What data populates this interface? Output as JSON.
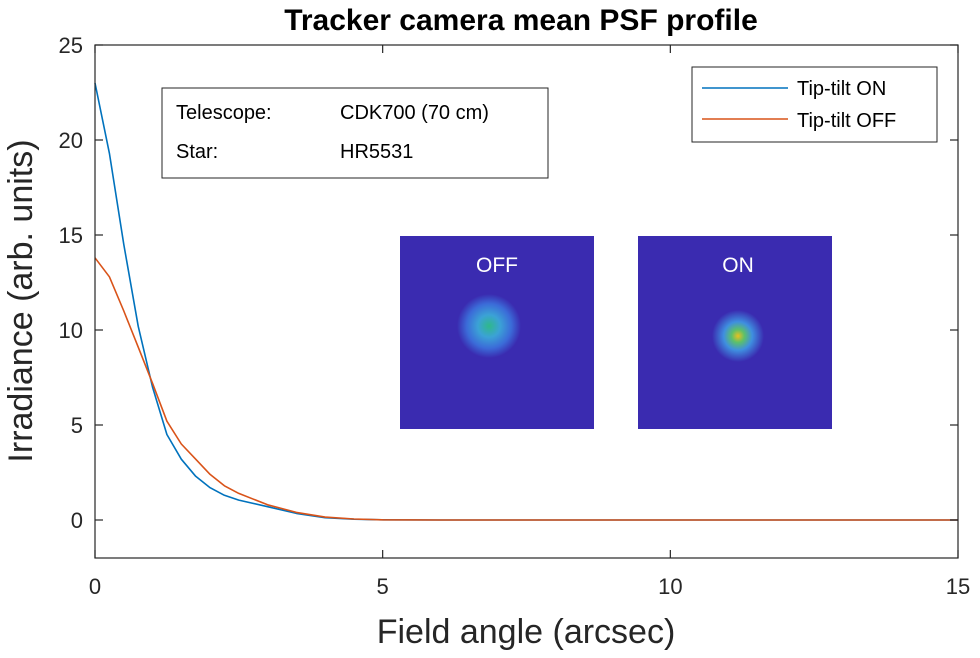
{
  "chart_data": {
    "type": "line",
    "title": "Tracker camera mean PSF profile",
    "xlabel": "Field angle (arcsec)",
    "ylabel": "Irradiance (arb. units)",
    "xlim": [
      0,
      15
    ],
    "ylim": [
      -2,
      25
    ],
    "xticks": [
      0,
      5,
      10,
      15
    ],
    "yticks": [
      0,
      5,
      10,
      15,
      20,
      25
    ],
    "grid": false,
    "legend_position": "top-right",
    "series": [
      {
        "name": "Tip-tilt ON",
        "color": "#0072BD",
        "x": [
          0,
          0.25,
          0.5,
          0.75,
          1.0,
          1.25,
          1.5,
          1.75,
          2.0,
          2.25,
          2.5,
          3.0,
          3.5,
          4.0,
          4.5,
          5.0,
          6,
          8,
          10,
          12,
          15
        ],
        "y": [
          23.0,
          19.3,
          14.5,
          10.2,
          7.0,
          4.5,
          3.2,
          2.3,
          1.7,
          1.3,
          1.05,
          0.7,
          0.35,
          0.12,
          0.04,
          0.01,
          0,
          0,
          0,
          0,
          0
        ]
      },
      {
        "name": "Tip-tilt OFF",
        "color": "#D95319",
        "x": [
          0,
          0.25,
          0.5,
          0.75,
          1.0,
          1.25,
          1.5,
          1.75,
          2.0,
          2.25,
          2.5,
          3.0,
          3.5,
          4.0,
          4.5,
          5.0,
          6,
          8,
          10,
          12,
          15
        ],
        "y": [
          13.8,
          12.8,
          11.0,
          9.1,
          7.2,
          5.2,
          4.0,
          3.2,
          2.4,
          1.8,
          1.4,
          0.8,
          0.4,
          0.15,
          0.05,
          0.01,
          0,
          0,
          0,
          0,
          0
        ]
      }
    ],
    "annotation_box": {
      "rows": [
        {
          "label": "Telescope:",
          "value": "CDK700 (70 cm)"
        },
        {
          "label": "Star:",
          "value": "HR5531"
        }
      ]
    },
    "insets": [
      {
        "label": "OFF",
        "background": "#3A2BB0",
        "spot_peak": "#2FB88A",
        "spot_halo": "#3F8FE0"
      },
      {
        "label": "ON",
        "background": "#3A2BB0",
        "spot_peak": "#E8C020",
        "spot_halo": "#3F8FE0"
      }
    ]
  }
}
